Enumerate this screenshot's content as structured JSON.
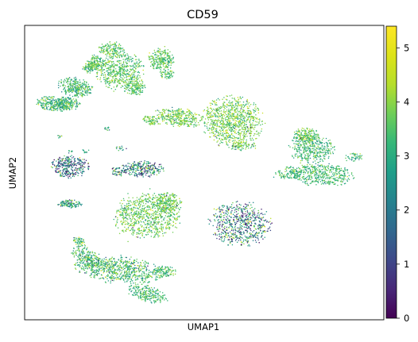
{
  "chart_data": {
    "type": "scatter",
    "title": "CD59",
    "xlabel": "UMAP1",
    "ylabel": "UMAP2",
    "x_ticks_shown": false,
    "y_ticks_shown": false,
    "grid": false,
    "colormap": "viridis",
    "colorbar": {
      "range": [
        0,
        5.4
      ],
      "ticks": [
        0,
        1,
        2,
        3,
        4,
        5
      ],
      "tick_labels": [
        "0",
        "1",
        "2",
        "3",
        "4",
        "5"
      ]
    },
    "cluster_groups": [
      {
        "expression_mean": 3.3,
        "expression_spread": 0.6,
        "low_fraction": 0.0
      },
      {
        "expression_mean": 3.6,
        "expression_spread": 0.5,
        "low_fraction": 0.0
      },
      {
        "expression_mean": 3.5,
        "expression_spread": 0.5,
        "low_fraction": 0.0
      },
      {
        "expression_mean": 3.8,
        "expression_spread": 0.5,
        "low_fraction": 0.02
      },
      {
        "expression_mean": 3.3,
        "expression_spread": 0.5,
        "low_fraction": 0.0
      },
      {
        "expression_mean": 2.6,
        "expression_spread": 1.2,
        "low_fraction": 0.4
      },
      {
        "expression_mean": 2.8,
        "expression_spread": 1.1,
        "low_fraction": 0.3
      },
      {
        "expression_mean": 3.7,
        "expression_spread": 0.5,
        "low_fraction": 0.02
      },
      {
        "expression_mean": 2.8,
        "expression_spread": 1.1,
        "low_fraction": 0.3
      },
      {
        "expression_mean": 3.4,
        "expression_spread": 0.6,
        "low_fraction": 0.05
      },
      {
        "expression_mean": 3.3,
        "expression_spread": 0.5,
        "low_fraction": 0.0
      },
      {
        "expression_mean": 3.6,
        "expression_spread": 0.6,
        "low_fraction": 0.02
      },
      {
        "expression_mean": 2.9,
        "expression_spread": 0.8,
        "low_fraction": 0.05
      }
    ]
  }
}
